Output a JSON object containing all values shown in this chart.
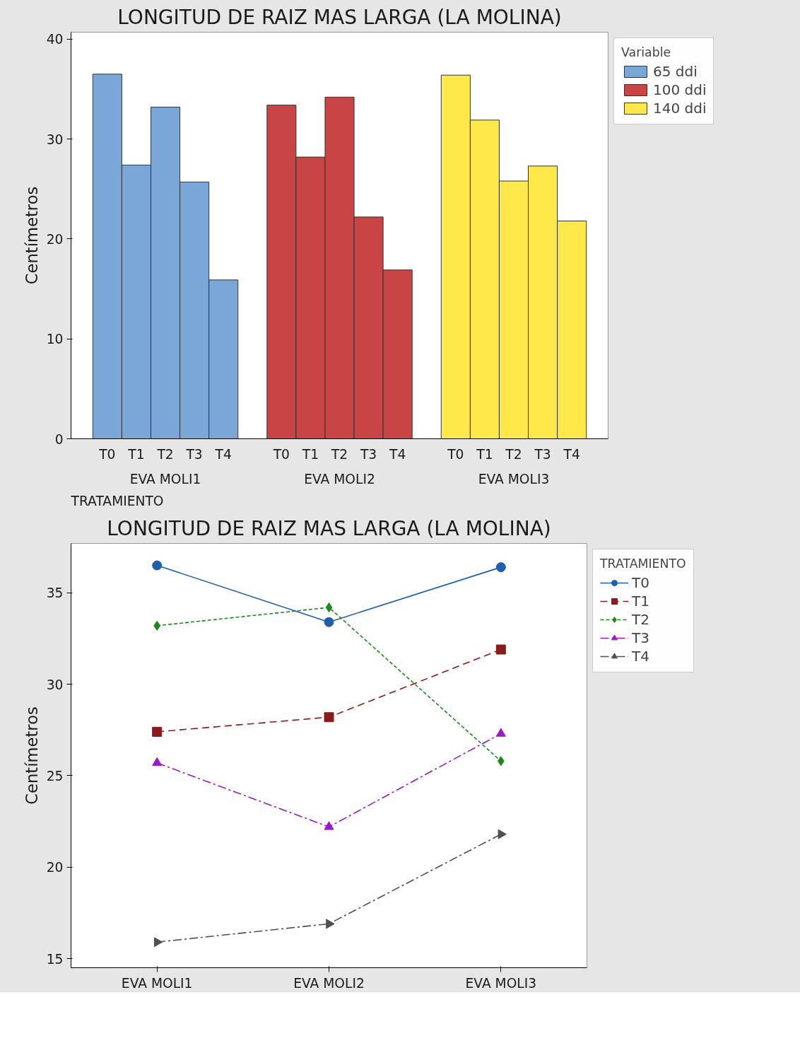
{
  "chart_data": [
    {
      "type": "bar",
      "title": "LONGITUD DE RAIZ MAS LARGA (LA MOLINA)",
      "xlabel": "TRATAMIENTO",
      "ylabel": "Centímetros",
      "legend_title": "Variable",
      "categories": [
        "T0",
        "T1",
        "T2",
        "T3",
        "T4",
        null,
        "T0",
        "T1",
        "T2",
        "T3",
        "T4",
        null,
        "T0",
        "T1",
        "T2",
        "T3",
        "T4"
      ],
      "series": [
        {
          "name": "65 ddi",
          "color": "#7ba6d8",
          "values": [
            36.5,
            27.4,
            33.2,
            25.7,
            15.9,
            null,
            null,
            null,
            null,
            null,
            null,
            null,
            null,
            null,
            null,
            null,
            null
          ]
        },
        {
          "name": "100 ddi",
          "color": "#c94545",
          "values": [
            null,
            null,
            null,
            null,
            null,
            null,
            33.4,
            28.2,
            34.2,
            22.2,
            16.9,
            null,
            null,
            null,
            null,
            null,
            null
          ]
        },
        {
          "name": "140 ddi",
          "color": "#ffe94a",
          "values": [
            null,
            null,
            null,
            null,
            null,
            null,
            null,
            null,
            null,
            null,
            null,
            null,
            36.4,
            31.9,
            25.8,
            27.3,
            21.8
          ]
        }
      ],
      "stacked": true,
      "annotations": [
        "EVA MOLI1",
        "EVA MOLI2",
        "EVA MOLI3"
      ],
      "ylim": [
        0,
        40.7
      ],
      "yticks": [
        0,
        10,
        20,
        30,
        40
      ],
      "grid": false,
      "legend": "top right"
    },
    {
      "type": "line",
      "title": "LONGITUD DE RAIZ MAS LARGA (LA MOLINA)",
      "ylabel": "Centímetros",
      "legend_title": "TRATAMIENTO",
      "categories": [
        "EVA MOLI1",
        "EVA MOLI2",
        "EVA MOLI3"
      ],
      "series": [
        {
          "name": "T0",
          "color": "#1f5fad",
          "marker": "circle",
          "line_style": "solid",
          "values": [
            36.5,
            33.4,
            36.4
          ]
        },
        {
          "name": "T1",
          "color": "#8b1a1a",
          "marker": "square",
          "line_style": "dashed",
          "values": [
            27.4,
            28.2,
            31.9
          ]
        },
        {
          "name": "T2",
          "color": "#1a8a1a",
          "marker": "diamond",
          "line_style": "dotted",
          "values": [
            33.2,
            34.2,
            25.8
          ]
        },
        {
          "name": "T3",
          "color": "#9a1ac8",
          "marker": "triangle",
          "line_style": "dashdot",
          "values": [
            25.7,
            22.2,
            27.3
          ]
        },
        {
          "name": "T4",
          "color": "#505050",
          "marker": "triangle_right",
          "line_style": "dashdot",
          "values": [
            15.9,
            16.9,
            21.8
          ]
        }
      ],
      "ylim": [
        14.5,
        37.7
      ],
      "yticks": [
        15,
        20,
        25,
        30,
        35
      ],
      "grid": false,
      "legend": "top right"
    }
  ]
}
